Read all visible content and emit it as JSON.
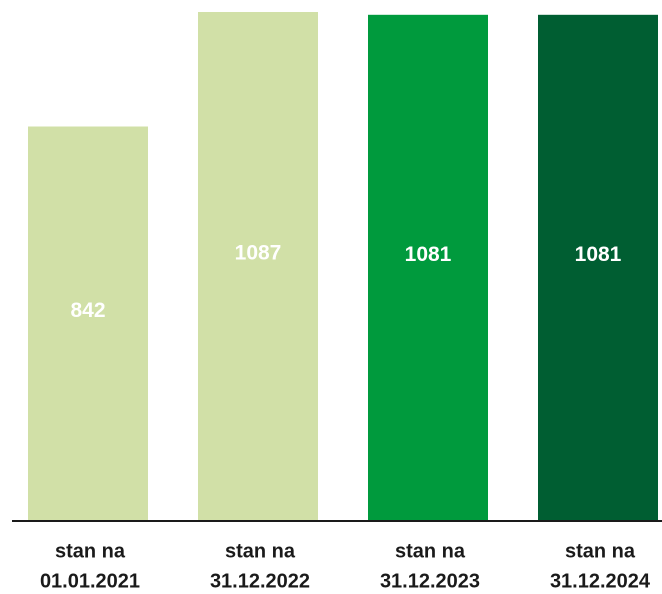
{
  "chart_data": {
    "type": "bar",
    "categories": [
      [
        "stan na",
        "01.01.2021"
      ],
      [
        "stan na",
        "31.12.2022"
      ],
      [
        "stan na",
        "31.12.2023"
      ],
      [
        "stan na",
        "31.12.2024"
      ]
    ],
    "values": [
      842,
      1087,
      1081,
      1081
    ],
    "colors": [
      "#d1e0a7",
      "#d1e0a7",
      "#009a3d",
      "#005e32"
    ]
  }
}
